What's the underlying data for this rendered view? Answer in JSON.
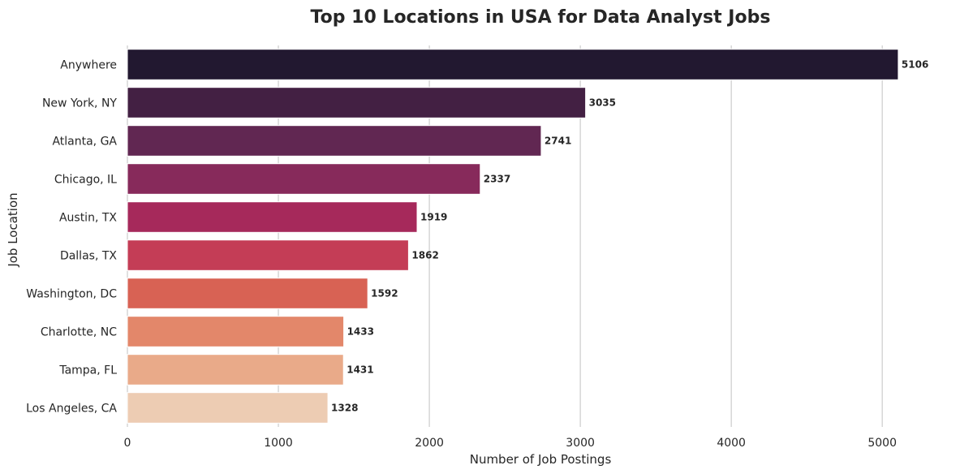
{
  "chart_data": {
    "type": "bar",
    "orientation": "horizontal",
    "title": "Top 10 Locations in USA for Data Analyst Jobs",
    "xlabel": "Number of Job Postings",
    "ylabel": "Job Location",
    "categories": [
      "Anywhere",
      "New York, NY",
      "Atlanta, GA",
      "Chicago, IL",
      "Austin, TX",
      "Dallas, TX",
      "Washington, DC",
      "Charlotte, NC",
      "Tampa, FL",
      "Los Angeles, CA"
    ],
    "values": [
      5106,
      3035,
      2741,
      2337,
      1919,
      1862,
      1592,
      1433,
      1431,
      1328
    ],
    "colors": [
      "#221830",
      "#432043",
      "#612752",
      "#872a5b",
      "#a6295b",
      "#c43d56",
      "#d86254",
      "#e3876a",
      "#e9aa89",
      "#edccb3"
    ],
    "xlim": [
      0,
      5300
    ],
    "xticks": [
      0,
      1000,
      2000,
      3000,
      4000,
      5000
    ],
    "grid": "vertical",
    "legend": "none"
  }
}
